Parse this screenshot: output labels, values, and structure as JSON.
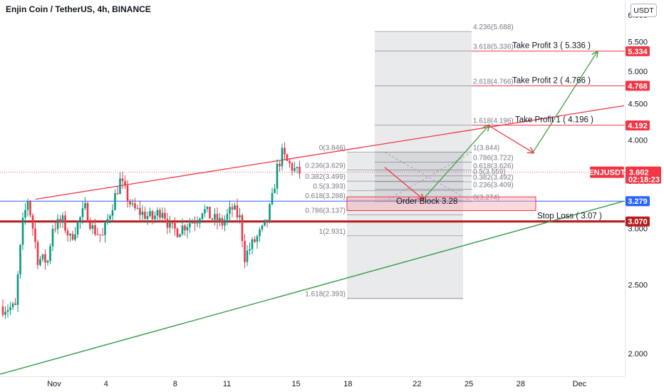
{
  "header": {
    "title": "Enjin Coin / TetherUS, 4h, BINANCE",
    "currency": "USDT"
  },
  "chart_data": {
    "type": "candlestick",
    "symbol": "ENJUSDT",
    "timeframe": "4h",
    "exchange": "BINANCE",
    "y_scale": "log",
    "ylim": [
      1.82,
      6.15
    ],
    "x_ticks": [
      "Nov",
      "4",
      "8",
      "11",
      "15",
      "18",
      "22",
      "25",
      "28",
      "Dec"
    ],
    "y_ticks": [
      {
        "label": "6.000",
        "value": 6.0
      },
      {
        "label": "5.500",
        "value": 5.5
      },
      {
        "label": "5.000",
        "value": 5.0
      },
      {
        "label": "4.500",
        "value": 4.5
      },
      {
        "label": "4.000",
        "value": 4.0
      },
      {
        "label": "3.500",
        "value": 3.5
      },
      {
        "label": "3.000",
        "value": 3.0
      },
      {
        "label": "2.500",
        "value": 2.5
      },
      {
        "label": "2.000",
        "value": 2.0
      }
    ],
    "price_tags": [
      {
        "label": "5.334",
        "value": 5.334,
        "color": "#f23645"
      },
      {
        "label": "4.768",
        "value": 4.768,
        "color": "#f23645"
      },
      {
        "label": "4.192",
        "value": 4.192,
        "color": "#f23645"
      },
      {
        "label": "3.279",
        "value": 3.279,
        "color": "#2962ff"
      },
      {
        "label": "3.070",
        "value": 3.07,
        "color": "#b71c1c"
      }
    ],
    "current_price": {
      "symbol": "ENJUSDT",
      "price": "3.602",
      "countdown": "02:18:23",
      "value": 3.602,
      "color": "#f23645"
    },
    "fib_levels_upper": [
      {
        "label": "4.236(5.688)",
        "value": 5.688
      },
      {
        "label": "3.618(5.336)",
        "value": 5.336
      },
      {
        "label": "2.618(4.766)",
        "value": 4.766
      },
      {
        "label": "1.618(4.196)",
        "value": 4.196
      },
      {
        "label": "1(3.844)",
        "value": 3.844
      },
      {
        "label": "0.786(3.722)",
        "value": 3.722
      },
      {
        "label": "0.618(3.626)",
        "value": 3.626
      },
      {
        "label": "0.5(3.559)",
        "value": 3.559
      },
      {
        "label": "0.382(3.492)",
        "value": 3.492
      },
      {
        "label": "0.236(3.409)",
        "value": 3.409
      },
      {
        "label": "0(3.274)",
        "value": 3.274
      }
    ],
    "fib_levels_lower": [
      {
        "label": "0(3.846)",
        "value": 3.846
      },
      {
        "label": "0.236(3.629)",
        "value": 3.629
      },
      {
        "label": "0.382(3.499)",
        "value": 3.499
      },
      {
        "label": "0.5(3.393)",
        "value": 3.393
      },
      {
        "label": "0.618(3.288)",
        "value": 3.288
      },
      {
        "label": "0.786(3.137)",
        "value": 3.137
      },
      {
        "label": "1(2.931)",
        "value": 2.931
      },
      {
        "label": "1.618(2.393)",
        "value": 2.393
      }
    ],
    "annotations": {
      "tp3": "Take Profit 3 ( 5.336 )",
      "tp2": "Take Profit 2 ( 4.766 )",
      "tp1": "Take Profit 1 ( 4.196 )",
      "order_block": "Order Block 3.28",
      "stop_loss": "Stop Loss ( 3.07 )"
    },
    "support_resistance": {
      "blue_line": 3.279,
      "dark_red_line": 3.07
    },
    "candles": {
      "count": 144,
      "start_price": 2.33,
      "anchors": [
        [
          0,
          2.32
        ],
        [
          5,
          2.32
        ],
        [
          8,
          3.05
        ],
        [
          10,
          3.3
        ],
        [
          14,
          2.72
        ],
        [
          18,
          2.7
        ],
        [
          20,
          3.02
        ],
        [
          24,
          3.07
        ],
        [
          27,
          2.9
        ],
        [
          33,
          3.2
        ],
        [
          36,
          3.0
        ],
        [
          40,
          2.92
        ],
        [
          44,
          3.25
        ],
        [
          47,
          3.5
        ],
        [
          52,
          3.2
        ],
        [
          56,
          3.15
        ],
        [
          60,
          3.1
        ],
        [
          64,
          3.2
        ],
        [
          67,
          3.0
        ],
        [
          70,
          2.98
        ],
        [
          74,
          3.05
        ],
        [
          78,
          3.1
        ],
        [
          80,
          3.2
        ],
        [
          84,
          3.1
        ],
        [
          88,
          3.05
        ],
        [
          92,
          3.2
        ],
        [
          95,
          3.1
        ],
        [
          97,
          2.74
        ],
        [
          100,
          2.85
        ],
        [
          104,
          2.98
        ],
        [
          106,
          3.08
        ],
        [
          108,
          3.3
        ],
        [
          110,
          3.65
        ],
        [
          112,
          3.82
        ],
        [
          114,
          3.72
        ],
        [
          116,
          3.66
        ],
        [
          118,
          3.6
        ],
        [
          143,
          3.6
        ]
      ]
    }
  }
}
